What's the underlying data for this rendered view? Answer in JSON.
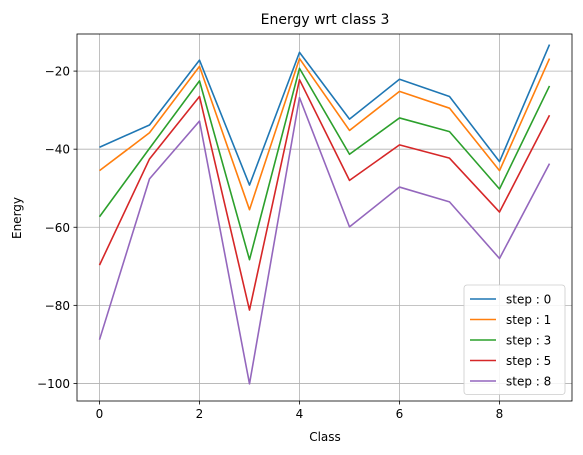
{
  "chart_data": {
    "type": "line",
    "title": "Energy wrt class 3",
    "xlabel": "Class",
    "ylabel": "Energy",
    "x": [
      0,
      1,
      2,
      3,
      4,
      5,
      6,
      7,
      8,
      9
    ],
    "xlim": [
      -0.45,
      9.45
    ],
    "ylim": [
      -104.5,
      -10.5
    ],
    "xticks": [
      0,
      2,
      4,
      6,
      8
    ],
    "yticks": [
      -100,
      -80,
      -60,
      -40,
      -20
    ],
    "ytick_labels": [
      "−100",
      "−80",
      "−60",
      "−40",
      "−20"
    ],
    "grid": true,
    "legend_position": "bottom-right",
    "series": [
      {
        "name": "step : 0",
        "color": "#1f77b4",
        "values": [
          -39.5,
          -33.8,
          -17.2,
          -49.2,
          -15.2,
          -32.3,
          -22.1,
          -26.5,
          -43.2,
          -13.2
        ]
      },
      {
        "name": "step : 1",
        "color": "#ff7f0e",
        "values": [
          -45.5,
          -35.8,
          -18.8,
          -55.5,
          -16.8,
          -35.2,
          -25.2,
          -29.5,
          -45.5,
          -16.8
        ]
      },
      {
        "name": "step : 3",
        "color": "#2ca02c",
        "values": [
          -57.3,
          -39.8,
          -22.5,
          -68.3,
          -19.3,
          -41.3,
          -32.0,
          -35.5,
          -50.2,
          -23.8
        ]
      },
      {
        "name": "step : 5",
        "color": "#d62728",
        "values": [
          -69.7,
          -42.5,
          -26.5,
          -81.2,
          -22.2,
          -48.0,
          -38.9,
          -42.3,
          -56.1,
          -31.3
        ]
      },
      {
        "name": "step : 8",
        "color": "#9467bd",
        "values": [
          -88.8,
          -47.6,
          -32.8,
          -100.1,
          -26.8,
          -59.9,
          -49.7,
          -53.5,
          -68.0,
          -43.7
        ]
      }
    ]
  }
}
